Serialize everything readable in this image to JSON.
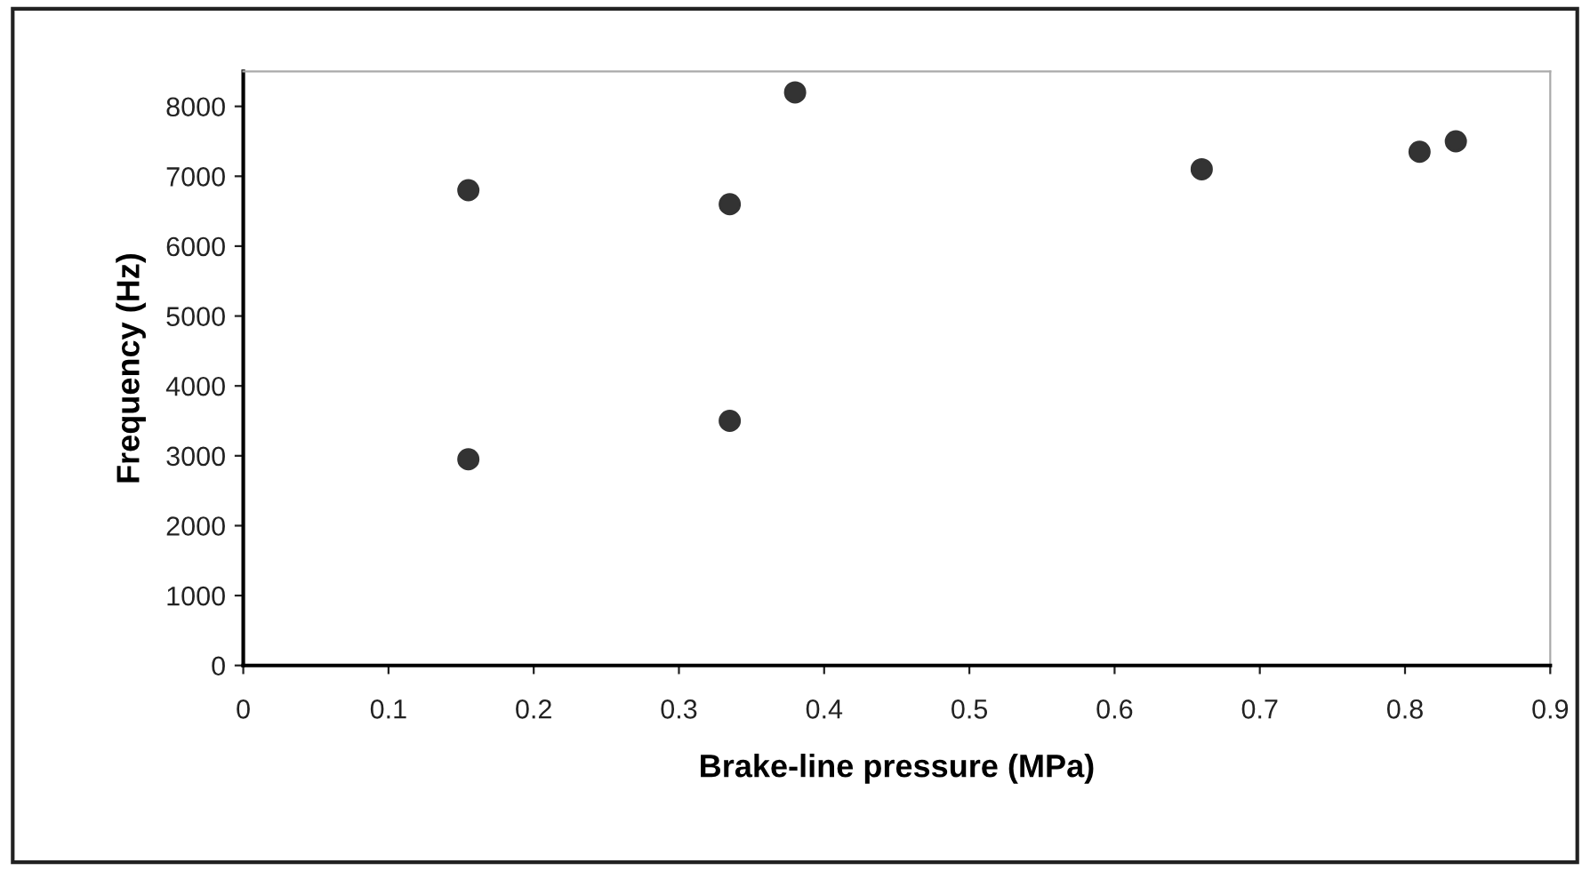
{
  "chart_data": {
    "type": "scatter",
    "xlabel": "Brake-line pressure (MPa)",
    "ylabel": "Frequency (Hz)",
    "x": [
      0.155,
      0.155,
      0.335,
      0.335,
      0.38,
      0.66,
      0.81,
      0.835
    ],
    "values": [
      6800,
      2950,
      6600,
      3500,
      8200,
      7100,
      7350,
      7500
    ],
    "color": "#333333",
    "marker": "circle",
    "xlim": [
      0,
      0.9
    ],
    "xticks": [
      {
        "value": 0,
        "label": "0"
      },
      0.1,
      0.2,
      0.3,
      0.4,
      0.5,
      0.6,
      0.7,
      0.8,
      0.9
    ],
    "ylim": [
      0,
      8500
    ],
    "yticks": [
      0,
      1000,
      2000,
      3000,
      4000,
      5000,
      6000,
      7000,
      8000
    ],
    "grid": false
  }
}
